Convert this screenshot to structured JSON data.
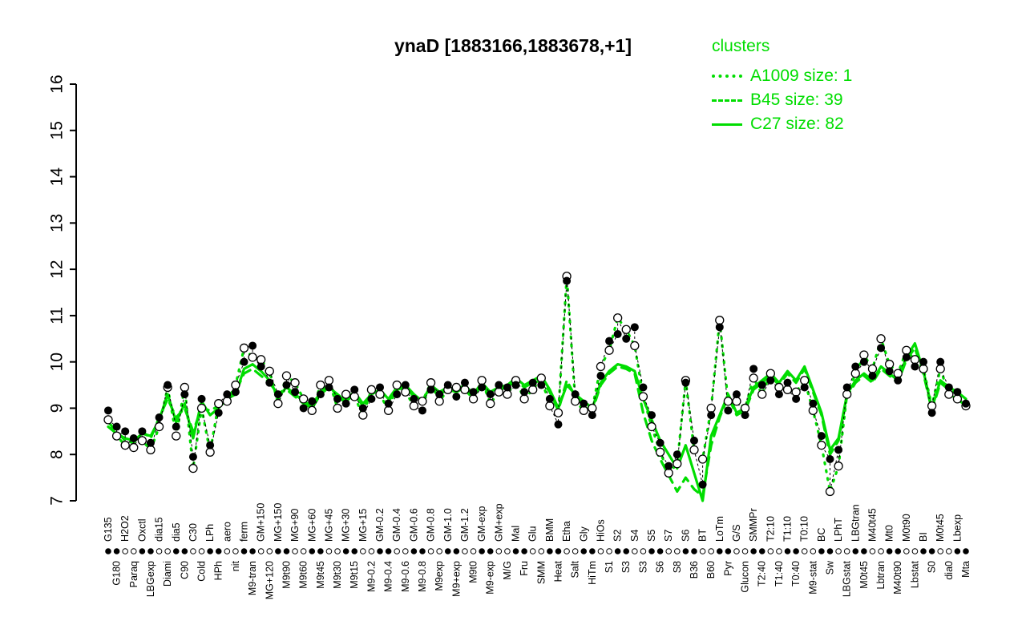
{
  "title": "ynaD [1883166,1883678,+1]",
  "legend": {
    "title": "clusters",
    "color": "#00DD00",
    "entries": [
      {
        "label": "A1009 size: 1",
        "style": "dotted"
      },
      {
        "label": "B45 size: 39",
        "style": "dashed"
      },
      {
        "label": "C27 size: 82",
        "style": "solid"
      }
    ]
  },
  "chart_data": {
    "type": "line",
    "title": "ynaD [1883166,1883678,+1]",
    "ylim": [
      7,
      16
    ],
    "yticks": [
      7,
      8,
      9,
      10,
      11,
      12,
      13,
      14,
      15,
      16
    ],
    "grid": false,
    "legend_position": "top-right",
    "colors": {
      "cluster": "#00DD00",
      "gene": "#000000",
      "open_marker_fill": "#ffffff"
    },
    "strip_pattern": "ffoo",
    "categories": [
      "G135",
      "G180",
      "H2O2",
      "Paraq",
      "Oxctl",
      "LBGexp",
      "dia15",
      "Diami",
      "dia5",
      "C90",
      "C30",
      "Cold",
      "LPh",
      "HPh",
      "aero",
      "nit",
      "ferm",
      "M9-tran",
      "GM+150",
      "MG+120",
      "MG+150",
      "M9t90",
      "MG+90",
      "M9t60",
      "MG+60",
      "M9t45",
      "MG+45",
      "M9t30",
      "MG+30",
      "M9t15",
      "MG+15",
      "M9-0.2",
      "GM-0.2",
      "M9-0.4",
      "GM-0.4",
      "M9-0.6",
      "GM-0.6",
      "M9-0.8",
      "GM-0.8",
      "M9exp",
      "GM-1.0",
      "M9+exp",
      "GM-1.2",
      "M9t0",
      "GM-exp",
      "M9-exp",
      "GM+exp",
      "M/G",
      "Mal",
      "Fru",
      "Glu",
      "SMM",
      "BMM",
      "Heat",
      "Etha",
      "Salt",
      "Gly",
      "HiTm",
      "HiOs",
      "S1",
      "S2",
      "S3",
      "S4",
      "S3",
      "S5",
      "S6",
      "S7",
      "S8",
      "S6",
      "B36",
      "BT",
      "B60",
      "LoTm",
      "Pyr",
      "G/S",
      "Glucon",
      "SMMPr",
      "T2:40",
      "T2:10",
      "T1:40",
      "T1:10",
      "T0:40",
      "T0:10",
      "M9-stat",
      "BC",
      "Sw",
      "LPhT",
      "LBGstat",
      "LBGtran",
      "M0t45",
      "M40t45",
      "Lbtran",
      "Mt0",
      "M40t90",
      "M0t90",
      "Lbstat",
      "BI",
      "S0",
      "M0t45",
      "dia0",
      "Lbexp",
      "Mta"
    ],
    "series": [
      {
        "name": "A1009",
        "cluster_size": 1,
        "role": "cluster",
        "style": "dotted",
        "color": "#00DD00",
        "values_same_as": "gene-open"
      },
      {
        "name": "B45",
        "cluster_size": 39,
        "role": "cluster",
        "style": "dashed",
        "color": "#00DD00",
        "values": [
          8.7,
          8.5,
          8.3,
          8.25,
          8.5,
          8.35,
          8.8,
          9.2,
          8.8,
          9.0,
          8.5,
          9.0,
          8.95,
          9.05,
          9.25,
          9.35,
          9.75,
          9.85,
          9.7,
          9.55,
          9.3,
          9.4,
          9.25,
          9.1,
          9.0,
          9.3,
          9.45,
          9.3,
          9.15,
          9.3,
          9.05,
          9.25,
          9.35,
          9.15,
          9.4,
          9.45,
          9.25,
          9.1,
          9.45,
          9.3,
          9.4,
          9.35,
          9.45,
          9.25,
          9.5,
          9.3,
          9.4,
          9.45,
          9.6,
          9.45,
          9.55,
          9.6,
          9.35,
          8.95,
          9.6,
          9.25,
          9.1,
          8.95,
          9.5,
          9.75,
          9.9,
          9.85,
          9.75,
          8.9,
          8.3,
          7.9,
          7.55,
          7.2,
          7.5,
          7.25,
          7.1,
          8.2,
          8.8,
          9.25,
          8.85,
          8.95,
          9.4,
          9.55,
          9.7,
          9.5,
          9.75,
          9.55,
          9.85,
          9.35,
          8.85,
          8.0,
          8.3,
          9.25,
          9.55,
          9.7,
          9.55,
          9.85,
          9.7,
          9.55,
          10.05,
          10.3,
          9.75,
          8.95,
          9.55,
          9.4,
          9.3,
          9.15
        ]
      },
      {
        "name": "C27",
        "cluster_size": 82,
        "role": "cluster",
        "style": "solid",
        "color": "#00DD00",
        "values": [
          8.6,
          8.45,
          8.35,
          8.3,
          8.45,
          8.4,
          8.75,
          9.3,
          8.7,
          9.1,
          8.35,
          9.15,
          8.85,
          9.0,
          9.2,
          9.3,
          9.85,
          9.95,
          9.8,
          9.6,
          9.25,
          9.45,
          9.3,
          9.15,
          9.05,
          9.35,
          9.5,
          9.25,
          9.2,
          9.35,
          9.1,
          9.3,
          9.4,
          9.2,
          9.45,
          9.5,
          9.3,
          9.15,
          9.5,
          9.35,
          9.45,
          9.4,
          9.5,
          9.3,
          9.55,
          9.35,
          9.45,
          9.5,
          9.65,
          9.5,
          9.6,
          9.7,
          9.4,
          9.0,
          9.5,
          9.3,
          9.15,
          9.0,
          9.55,
          9.8,
          9.95,
          9.9,
          9.8,
          9.2,
          8.75,
          8.3,
          8.0,
          7.7,
          8.2,
          7.6,
          7.0,
          8.4,
          8.85,
          9.3,
          8.9,
          9.0,
          9.45,
          9.6,
          9.75,
          9.55,
          9.8,
          9.6,
          9.9,
          9.4,
          8.9,
          8.1,
          8.35,
          9.3,
          9.6,
          9.75,
          9.6,
          9.9,
          9.75,
          9.6,
          10.1,
          10.4,
          9.8,
          9.0,
          9.6,
          9.45,
          9.35,
          9.2
        ]
      },
      {
        "name": "gene-filled",
        "role": "gene",
        "marker": "filled-circle",
        "color": "#000000",
        "values": [
          8.95,
          8.6,
          8.5,
          8.35,
          8.5,
          8.25,
          8.8,
          9.5,
          8.6,
          9.3,
          7.95,
          9.2,
          8.2,
          8.9,
          9.3,
          9.35,
          10.0,
          10.35,
          9.9,
          9.55,
          9.3,
          9.5,
          9.35,
          9.0,
          9.15,
          9.3,
          9.45,
          9.2,
          9.1,
          9.4,
          9.0,
          9.2,
          9.45,
          9.1,
          9.3,
          9.5,
          9.2,
          8.95,
          9.4,
          9.3,
          9.5,
          9.25,
          9.55,
          9.35,
          9.45,
          9.3,
          9.5,
          9.45,
          9.5,
          9.35,
          9.55,
          9.5,
          9.2,
          8.65,
          11.75,
          9.3,
          9.1,
          8.85,
          9.7,
          10.45,
          10.6,
          10.5,
          10.75,
          9.45,
          8.85,
          8.25,
          7.75,
          8.0,
          9.55,
          8.3,
          7.35,
          8.85,
          10.75,
          8.95,
          9.3,
          8.85,
          9.85,
          9.5,
          9.6,
          9.3,
          9.55,
          9.2,
          9.45,
          9.1,
          8.4,
          7.9,
          8.1,
          9.45,
          9.9,
          10.0,
          9.7,
          10.3,
          9.8,
          9.6,
          10.1,
          9.9,
          10.0,
          8.9,
          10.0,
          9.45,
          9.35,
          9.1
        ]
      },
      {
        "name": "gene-open",
        "role": "gene",
        "marker": "open-circle",
        "color": "#000000",
        "values": [
          8.75,
          8.4,
          8.2,
          8.15,
          8.3,
          8.1,
          8.6,
          9.45,
          8.4,
          9.45,
          7.7,
          9.0,
          8.05,
          9.1,
          9.15,
          9.5,
          10.3,
          10.1,
          10.05,
          9.8,
          9.1,
          9.7,
          9.55,
          9.2,
          8.95,
          9.5,
          9.6,
          9.0,
          9.3,
          9.25,
          8.85,
          9.4,
          9.3,
          8.95,
          9.5,
          9.35,
          9.05,
          9.15,
          9.55,
          9.15,
          9.4,
          9.45,
          9.4,
          9.2,
          9.6,
          9.1,
          9.35,
          9.3,
          9.6,
          9.2,
          9.4,
          9.65,
          9.05,
          8.9,
          11.85,
          9.15,
          8.95,
          9.0,
          9.9,
          10.25,
          10.95,
          10.7,
          10.35,
          9.25,
          8.6,
          8.05,
          7.6,
          7.8,
          9.6,
          8.1,
          7.9,
          9.0,
          10.9,
          9.15,
          9.15,
          9.0,
          9.65,
          9.3,
          9.75,
          9.45,
          9.4,
          9.35,
          9.6,
          8.95,
          8.2,
          7.2,
          7.75,
          9.3,
          9.75,
          10.15,
          9.85,
          10.5,
          9.95,
          9.75,
          10.25,
          10.05,
          9.85,
          9.05,
          9.85,
          9.3,
          9.2,
          9.05
        ]
      }
    ]
  }
}
